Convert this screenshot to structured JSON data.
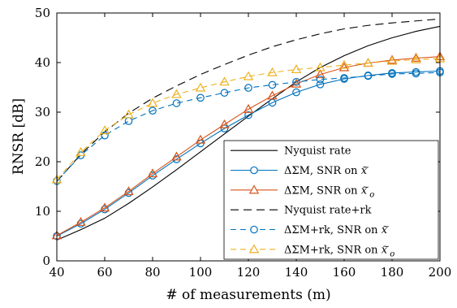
{
  "chart_data": {
    "type": "line",
    "title": "",
    "xlabel": "# of measurements (m)",
    "ylabel": "RNSR [dB]",
    "xlim": [
      40,
      200
    ],
    "ylim": [
      0,
      50
    ],
    "xticks": [
      40,
      60,
      80,
      100,
      120,
      140,
      160,
      180,
      200
    ],
    "yticks": [
      0,
      10,
      20,
      30,
      40,
      50
    ],
    "grid": false,
    "legend_position": "bottom-right",
    "x": [
      40,
      50,
      60,
      70,
      80,
      90,
      100,
      110,
      120,
      130,
      140,
      150,
      160,
      170,
      180,
      190,
      200
    ],
    "series": [
      {
        "name": "Nyquist rate",
        "label_parts": [
          "Nyquist rate"
        ],
        "color": "#000000",
        "dash": "solid",
        "marker": "none",
        "values": [
          4.2,
          6.3,
          8.6,
          11.6,
          14.9,
          18.4,
          22.0,
          25.6,
          29.2,
          32.7,
          36.1,
          39.0,
          41.4,
          43.4,
          45.0,
          46.3,
          47.3
        ]
      },
      {
        "name": "ΔΣM, SNR on x̃",
        "label_parts": [
          "ΔΣM, SNR on ",
          "x",
          "̃",
          ""
        ],
        "color": "#0072BD",
        "dash": "solid",
        "marker": "circle",
        "values": [
          5.0,
          7.5,
          10.4,
          13.7,
          17.2,
          20.5,
          23.7,
          26.7,
          29.4,
          31.9,
          34.0,
          35.6,
          36.7,
          37.4,
          37.9,
          38.1,
          38.3
        ]
      },
      {
        "name": "ΔΣM, SNR on x̃o",
        "label_parts": [
          "ΔΣM, SNR on ",
          "x",
          "̃",
          "o"
        ],
        "color": "#D95319",
        "dash": "solid",
        "marker": "triangle",
        "values": [
          5.1,
          7.8,
          10.7,
          14.0,
          17.6,
          21.0,
          24.4,
          27.5,
          30.6,
          33.3,
          35.7,
          37.6,
          39.0,
          39.9,
          40.5,
          40.9,
          41.2
        ]
      },
      {
        "name": "Nyquist rate+rk",
        "label_parts": [
          "Nyquist rate+rk"
        ],
        "color": "#000000",
        "dash": "long",
        "marker": "none",
        "values": [
          16.0,
          21.5,
          26.0,
          29.8,
          32.8,
          35.3,
          37.6,
          39.6,
          41.5,
          43.2,
          44.6,
          45.8,
          46.8,
          47.5,
          48.0,
          48.4,
          48.8
        ]
      },
      {
        "name": "ΔΣM+rk, SNR on x̃",
        "label_parts": [
          "ΔΣM+rk, SNR on ",
          "x",
          "̃",
          ""
        ],
        "color": "#0072BD",
        "dash": "dash",
        "marker": "circle",
        "values": [
          16.1,
          21.3,
          25.3,
          28.2,
          30.3,
          31.8,
          32.9,
          33.9,
          34.9,
          35.5,
          36.1,
          36.6,
          36.9,
          37.3,
          37.7,
          37.8,
          38.0
        ]
      },
      {
        "name": "ΔΣM+rk, SNR on x̃o",
        "label_parts": [
          "ΔΣM+rk, SNR on ",
          "x",
          "̃",
          "o"
        ],
        "color": "#EDB120",
        "dash": "dash",
        "marker": "triangle",
        "values": [
          16.4,
          21.9,
          26.3,
          29.5,
          31.8,
          33.6,
          34.9,
          36.1,
          37.2,
          38.0,
          38.6,
          39.0,
          39.5,
          39.9,
          40.3,
          40.6,
          40.8
        ]
      }
    ]
  }
}
